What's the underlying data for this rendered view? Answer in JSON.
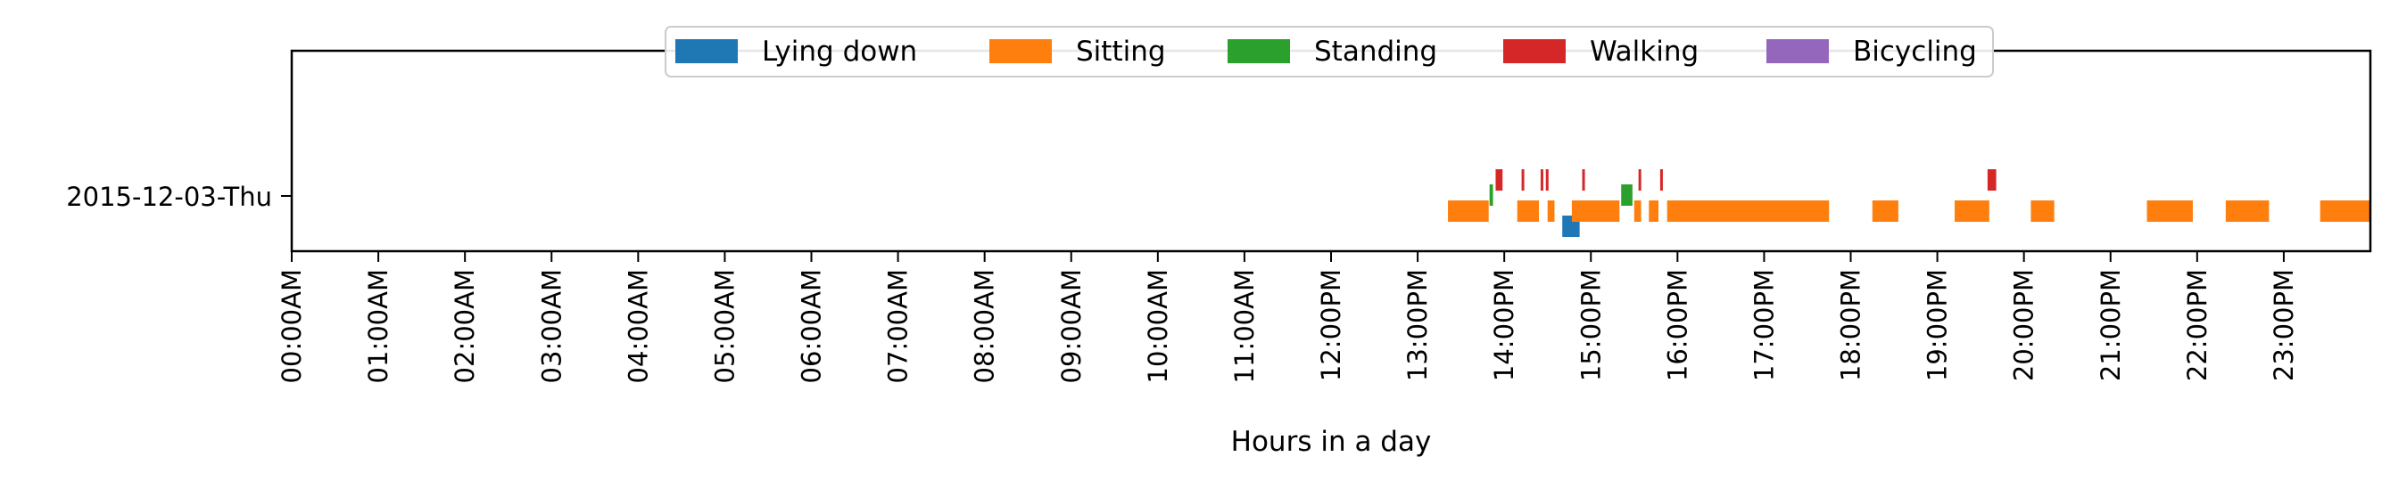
{
  "chart_data": {
    "type": "bar",
    "subtype": "timeline",
    "title": "",
    "xlabel": "Hours in a day",
    "ylabel": "",
    "xlim": [
      0,
      24
    ],
    "x_unit": "hours",
    "tick_labels": [
      "00:00AM",
      "01:00AM",
      "02:00AM",
      "03:00AM",
      "04:00AM",
      "05:00AM",
      "06:00AM",
      "07:00AM",
      "08:00AM",
      "09:00AM",
      "10:00AM",
      "11:00AM",
      "12:00PM",
      "13:00PM",
      "14:00PM",
      "15:00PM",
      "16:00PM",
      "17:00PM",
      "18:00PM",
      "19:00PM",
      "20:00PM",
      "21:00PM",
      "22:00PM",
      "23:00PM"
    ],
    "categories": [
      "2015-12-03-Thu"
    ],
    "grid": false,
    "legend_position": "top-center",
    "series": [
      {
        "name": "Lying down",
        "color": "#1f77b4",
        "segments": [
          [
            14.67,
            14.87
          ]
        ]
      },
      {
        "name": "Sitting",
        "color": "#ff7f0e",
        "segments": [
          [
            13.35,
            13.82
          ],
          [
            14.15,
            14.4
          ],
          [
            14.5,
            14.58
          ],
          [
            14.78,
            15.33
          ],
          [
            15.5,
            15.58
          ],
          [
            15.67,
            15.78
          ],
          [
            15.88,
            17.75
          ],
          [
            18.25,
            18.55
          ],
          [
            19.2,
            19.6
          ],
          [
            20.08,
            20.35
          ],
          [
            21.42,
            21.95
          ],
          [
            22.33,
            22.83
          ],
          [
            23.42,
            24.0
          ]
        ]
      },
      {
        "name": "Standing",
        "color": "#2ca02c",
        "segments": [
          [
            13.83,
            13.87
          ],
          [
            15.35,
            15.48
          ]
        ]
      },
      {
        "name": "Walking",
        "color": "#d62728",
        "segments": [
          [
            13.9,
            13.98
          ],
          [
            14.2,
            14.23
          ],
          [
            14.42,
            14.45
          ],
          [
            14.48,
            14.51
          ],
          [
            14.9,
            14.93
          ],
          [
            15.55,
            15.58
          ],
          [
            15.8,
            15.83
          ],
          [
            19.58,
            19.68
          ]
        ]
      },
      {
        "name": "Bicycling",
        "color": "#9467bd",
        "segments": []
      }
    ]
  }
}
